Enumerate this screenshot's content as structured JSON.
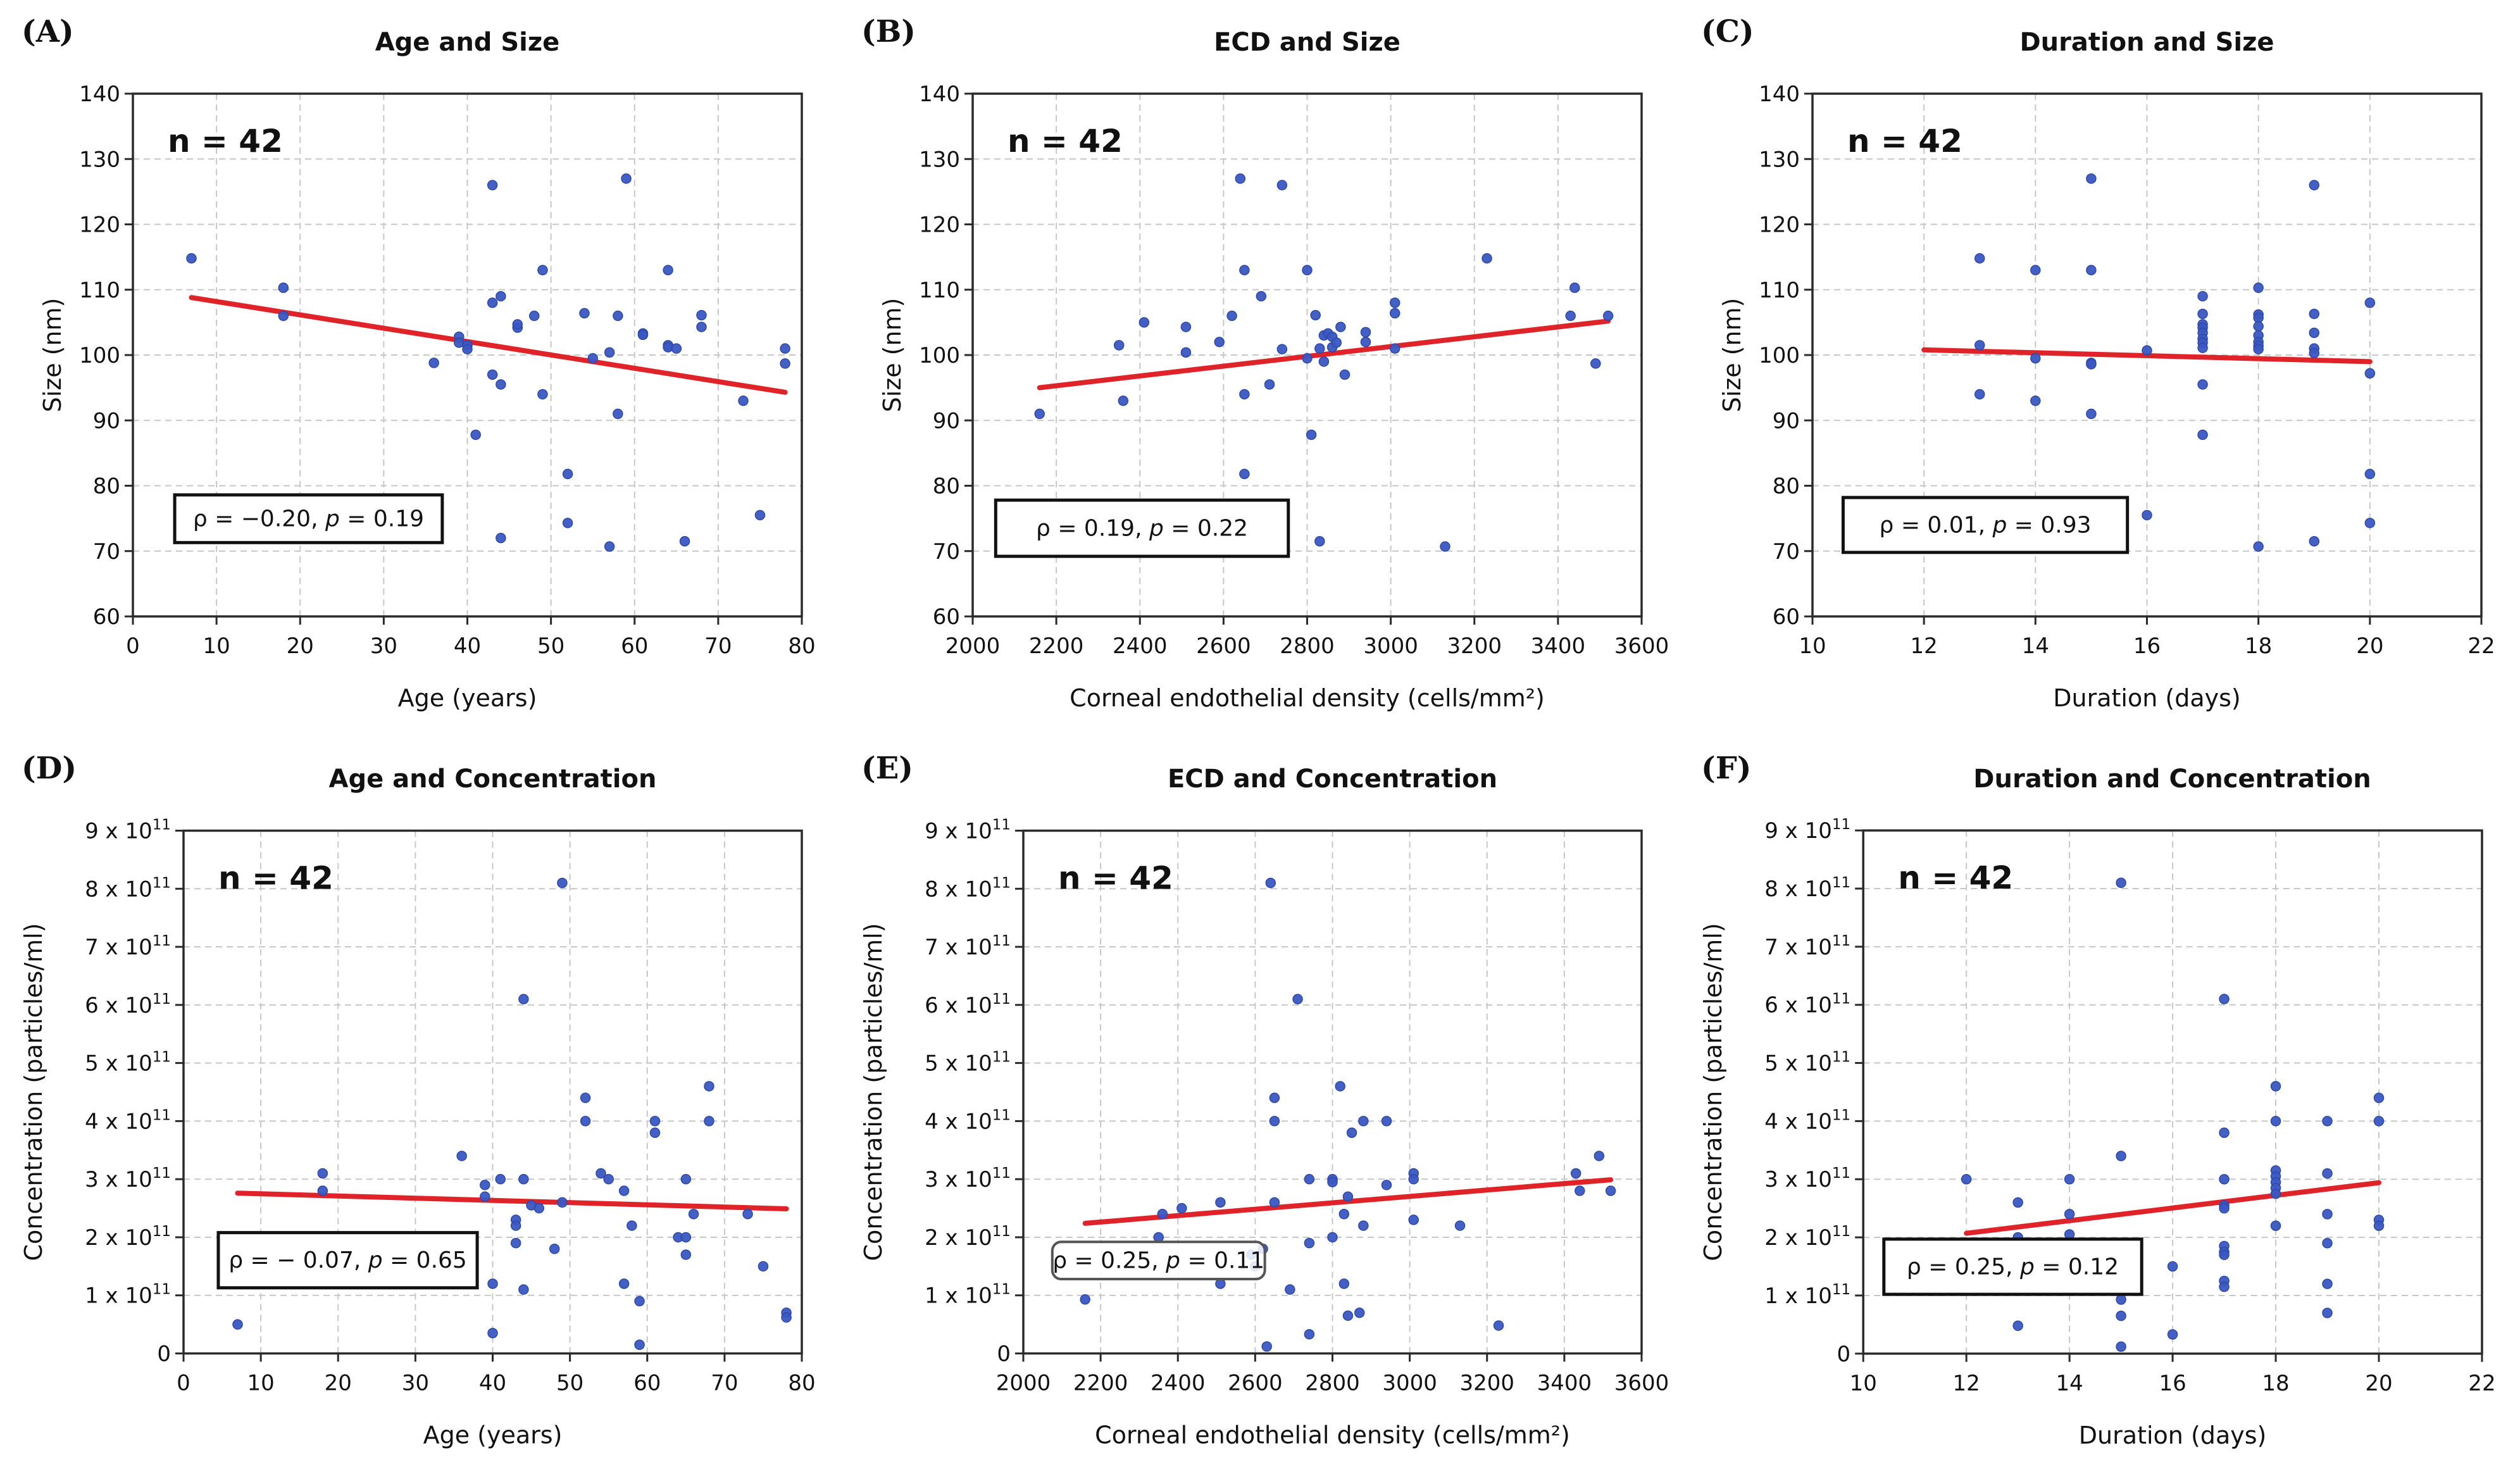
{
  "figure_title": "Correlation scatter plots",
  "colors": {
    "point_blue": "#3b57c2",
    "point_edge": "#2d49a8",
    "trend_red": "#e02328",
    "spine": "#2a2a2a",
    "grid": "#c7c7c7",
    "text": "#111111",
    "stats_border_square": "#111111",
    "stats_border_rounded": "#555555",
    "background": "#ffffff"
  },
  "chart_data": [
    {
      "type": "scatter",
      "letter": "(A)",
      "title": "Age and Size",
      "n_label": "n = 42",
      "xlabel": "Age (years)",
      "ylabel": "Size (nm)",
      "xlim": [
        0,
        80
      ],
      "xticks": [
        0,
        10,
        20,
        30,
        40,
        50,
        60,
        70,
        80
      ],
      "ylim": [
        60,
        140
      ],
      "yticks": [
        60,
        70,
        80,
        90,
        100,
        110,
        120,
        130,
        140
      ],
      "ytick_format": "plain",
      "grid": true,
      "points": [
        [
          7,
          114.8
        ],
        [
          18,
          110.3
        ],
        [
          18,
          106
        ],
        [
          36,
          98.8
        ],
        [
          39,
          102.8
        ],
        [
          39,
          101.9
        ],
        [
          40,
          101.5
        ],
        [
          40,
          100.9
        ],
        [
          41,
          87.8
        ],
        [
          43,
          126
        ],
        [
          43,
          108
        ],
        [
          44,
          109
        ],
        [
          43,
          97
        ],
        [
          44,
          95.5
        ],
        [
          44,
          72
        ],
        [
          46,
          104.2
        ],
        [
          46,
          104.7
        ],
        [
          48,
          106
        ],
        [
          49,
          113
        ],
        [
          49,
          94
        ],
        [
          52,
          81.8
        ],
        [
          52,
          74.3
        ],
        [
          54,
          106.4
        ],
        [
          55,
          99.5
        ],
        [
          57,
          100.4
        ],
        [
          57,
          70.7
        ],
        [
          58,
          106
        ],
        [
          59,
          127
        ],
        [
          58,
          91
        ],
        [
          61,
          103.3
        ],
        [
          61,
          103.1
        ],
        [
          64,
          113
        ],
        [
          64,
          101.5
        ],
        [
          64,
          101.2
        ],
        [
          65,
          101
        ],
        [
          66,
          71.5
        ],
        [
          68,
          106.1
        ],
        [
          68,
          104.3
        ],
        [
          73,
          93
        ],
        [
          75,
          75.5
        ],
        [
          78,
          101
        ],
        [
          78,
          98.7
        ]
      ],
      "trend": {
        "x1": 7,
        "y1": 108.8,
        "x2": 78,
        "y2": 94.3
      },
      "stats": {
        "prefix": "ρ = −0.20, ",
        "italic": "p",
        "suffix": " = 0.19"
      },
      "stats_box": {
        "x1": 5,
        "x2": 37,
        "y1": 71.3,
        "y2": 78.6,
        "rounded": false
      }
    },
    {
      "type": "scatter",
      "letter": "(B)",
      "title": "ECD and Size",
      "n_label": "n = 42",
      "xlabel": "Corneal endothelial density (cells/mm²)",
      "ylabel": "Size (nm)",
      "xlim": [
        2000,
        3600
      ],
      "xticks": [
        2000,
        2200,
        2400,
        2600,
        2800,
        3000,
        3200,
        3400,
        3600
      ],
      "ylim": [
        60,
        140
      ],
      "yticks": [
        60,
        70,
        80,
        90,
        100,
        110,
        120,
        130,
        140
      ],
      "ytick_format": "plain",
      "grid": true,
      "points": [
        [
          2160,
          91
        ],
        [
          2350,
          101.5
        ],
        [
          2360,
          93
        ],
        [
          2410,
          105
        ],
        [
          2510,
          104.3
        ],
        [
          2510,
          100.4
        ],
        [
          2590,
          102
        ],
        [
          2620,
          106
        ],
        [
          2640,
          127
        ],
        [
          2650,
          113
        ],
        [
          2650,
          94
        ],
        [
          2650,
          81.8
        ],
        [
          2690,
          109
        ],
        [
          2710,
          95.5
        ],
        [
          2740,
          126
        ],
        [
          2740,
          100.9
        ],
        [
          2740,
          72
        ],
        [
          2800,
          113
        ],
        [
          2800,
          99.5
        ],
        [
          2810,
          87.8
        ],
        [
          2820,
          106.1
        ],
        [
          2830,
          101
        ],
        [
          2830,
          71.5
        ],
        [
          2840,
          103
        ],
        [
          2850,
          103.3
        ],
        [
          2840,
          99
        ],
        [
          2860,
          101.2
        ],
        [
          2860,
          102.8
        ],
        [
          2870,
          101.9
        ],
        [
          2880,
          104.3
        ],
        [
          2890,
          97
        ],
        [
          2940,
          103.5
        ],
        [
          2940,
          102
        ],
        [
          3010,
          108
        ],
        [
          3010,
          106.4
        ],
        [
          3010,
          101
        ],
        [
          3130,
          70.7
        ],
        [
          3230,
          114.8
        ],
        [
          3430,
          106
        ],
        [
          3440,
          110.3
        ],
        [
          3490,
          98.7
        ],
        [
          3520,
          106
        ]
      ],
      "trend": {
        "x1": 2160,
        "y1": 95.0,
        "x2": 3520,
        "y2": 105.2
      },
      "stats": {
        "prefix": "ρ = 0.19, ",
        "italic": "p",
        "suffix": " = 0.22"
      },
      "stats_box": {
        "x1": 2055,
        "x2": 2755,
        "y1": 69.2,
        "y2": 77.8,
        "rounded": false
      }
    },
    {
      "type": "scatter",
      "letter": "(C)",
      "title": "Duration and Size",
      "n_label": "n = 42",
      "xlabel": "Duration (days)",
      "ylabel": "Size (nm)",
      "xlim": [
        10,
        22
      ],
      "xticks": [
        10,
        12,
        14,
        16,
        18,
        20,
        22
      ],
      "ylim": [
        60,
        140
      ],
      "yticks": [
        60,
        70,
        80,
        90,
        100,
        110,
        120,
        130,
        140
      ],
      "ytick_format": "plain",
      "grid": true,
      "points": [
        [
          13,
          114.8
        ],
        [
          13,
          101.5
        ],
        [
          13,
          94
        ],
        [
          14,
          113
        ],
        [
          14,
          99.5
        ],
        [
          14,
          93
        ],
        [
          15,
          127
        ],
        [
          15,
          113
        ],
        [
          15,
          98.8
        ],
        [
          15,
          98.6
        ],
        [
          15,
          91
        ],
        [
          16,
          100.7
        ],
        [
          16,
          75.5
        ],
        [
          17,
          109
        ],
        [
          17,
          106.3
        ],
        [
          17,
          104.7
        ],
        [
          17,
          104.2
        ],
        [
          17,
          103.4
        ],
        [
          17,
          102.5
        ],
        [
          17,
          101.9
        ],
        [
          17,
          101.1
        ],
        [
          17,
          95.5
        ],
        [
          17,
          87.8
        ],
        [
          18,
          110.3
        ],
        [
          18,
          106.2
        ],
        [
          18,
          105.7
        ],
        [
          18,
          104.4
        ],
        [
          18,
          103
        ],
        [
          18,
          102
        ],
        [
          18,
          101.4
        ],
        [
          18,
          100.9
        ],
        [
          18,
          70.7
        ],
        [
          19,
          126
        ],
        [
          19,
          106.3
        ],
        [
          19,
          103.4
        ],
        [
          19,
          101
        ],
        [
          19,
          100.3
        ],
        [
          19,
          71.5
        ],
        [
          20,
          108
        ],
        [
          20,
          97.2
        ],
        [
          20,
          81.8
        ],
        [
          20,
          74.3
        ]
      ],
      "trend": {
        "x1": 12,
        "y1": 100.8,
        "x2": 20,
        "y2": 99.0
      },
      "stats": {
        "prefix": "ρ = 0.01, ",
        "italic": "p",
        "suffix": " = 0.93"
      },
      "stats_box": {
        "x1": 10.55,
        "x2": 15.65,
        "y1": 69.8,
        "y2": 78.2,
        "rounded": false
      }
    },
    {
      "type": "scatter",
      "letter": "(D)",
      "title": "Age and Concentration",
      "n_label": "n = 42",
      "xlabel": "Age (years)",
      "ylabel": "Concentration (particles/ml)",
      "xlim": [
        0,
        80
      ],
      "xticks": [
        0,
        10,
        20,
        30,
        40,
        50,
        60,
        70,
        80
      ],
      "ylim": [
        0,
        9
      ],
      "yticks": [
        0,
        1,
        2,
        3,
        4,
        5,
        6,
        7,
        8,
        9
      ],
      "ytick_format": "sci11",
      "y_unit": "x 10^11 particles/ml",
      "grid": true,
      "points": [
        [
          7,
          0.5
        ],
        [
          18,
          3.1
        ],
        [
          18,
          2.8
        ],
        [
          36,
          3.4
        ],
        [
          39,
          2.9
        ],
        [
          39,
          2.7
        ],
        [
          40,
          1.2
        ],
        [
          40,
          0.35
        ],
        [
          41,
          3.0
        ],
        [
          43,
          2.3
        ],
        [
          43,
          2.2
        ],
        [
          43,
          1.9
        ],
        [
          44,
          6.1
        ],
        [
          44,
          3.0
        ],
        [
          44,
          1.1
        ],
        [
          45,
          2.55
        ],
        [
          46,
          2.5
        ],
        [
          48,
          1.8
        ],
        [
          49,
          8.1
        ],
        [
          49,
          2.6
        ],
        [
          52,
          4.4
        ],
        [
          52,
          4.0
        ],
        [
          54,
          3.1
        ],
        [
          55,
          3.0
        ],
        [
          57,
          2.8
        ],
        [
          57,
          1.2
        ],
        [
          58,
          2.2
        ],
        [
          59,
          0.9
        ],
        [
          59,
          0.15
        ],
        [
          61,
          4.0
        ],
        [
          61,
          3.8
        ],
        [
          64,
          2.0
        ],
        [
          65,
          3.0
        ],
        [
          65,
          2.0
        ],
        [
          65,
          1.7
        ],
        [
          66,
          2.4
        ],
        [
          68,
          4.6
        ],
        [
          68,
          4.0
        ],
        [
          73,
          2.4
        ],
        [
          75,
          1.5
        ],
        [
          78,
          0.7
        ],
        [
          78,
          0.62
        ]
      ],
      "trend": {
        "x1": 7,
        "y1": 2.76,
        "x2": 78,
        "y2": 2.49
      },
      "stats": {
        "prefix": "ρ = − 0.07, ",
        "italic": "p",
        "suffix": " = 0.65"
      },
      "stats_box": {
        "x1": 4.5,
        "x2": 38,
        "y1": 1.13,
        "y2": 2.08,
        "rounded": false
      }
    },
    {
      "type": "scatter",
      "letter": "(E)",
      "title": "ECD and Concentration",
      "n_label": "n = 42",
      "xlabel": "Corneal endothelial density (cells/mm²)",
      "ylabel": "Concentration (particles/ml)",
      "xlim": [
        2000,
        3600
      ],
      "xticks": [
        2000,
        2200,
        2400,
        2600,
        2800,
        3000,
        3200,
        3400,
        3600
      ],
      "ylim": [
        0,
        9
      ],
      "yticks": [
        0,
        1,
        2,
        3,
        4,
        5,
        6,
        7,
        8,
        9
      ],
      "ytick_format": "sci11",
      "y_unit": "x 10^11 particles/ml",
      "grid": true,
      "points": [
        [
          2160,
          0.93
        ],
        [
          2350,
          2.0
        ],
        [
          2360,
          2.4
        ],
        [
          2410,
          2.5
        ],
        [
          2510,
          2.6
        ],
        [
          2510,
          1.2
        ],
        [
          2590,
          1.7
        ],
        [
          2600,
          1.5
        ],
        [
          2620,
          1.8
        ],
        [
          2630,
          0.12
        ],
        [
          2640,
          8.1
        ],
        [
          2650,
          4.4
        ],
        [
          2650,
          4.0
        ],
        [
          2650,
          2.6
        ],
        [
          2690,
          1.1
        ],
        [
          2710,
          6.1
        ],
        [
          2740,
          3.0
        ],
        [
          2740,
          1.9
        ],
        [
          2740,
          0.33
        ],
        [
          2800,
          3.0
        ],
        [
          2800,
          2.95
        ],
        [
          2800,
          2.0
        ],
        [
          2820,
          4.6
        ],
        [
          2830,
          2.4
        ],
        [
          2830,
          1.2
        ],
        [
          2840,
          2.7
        ],
        [
          2840,
          0.65
        ],
        [
          2850,
          3.8
        ],
        [
          2870,
          0.7
        ],
        [
          2880,
          4.0
        ],
        [
          2880,
          2.2
        ],
        [
          2940,
          4.0
        ],
        [
          2940,
          2.9
        ],
        [
          3010,
          3.1
        ],
        [
          3010,
          3.0
        ],
        [
          3010,
          2.3
        ],
        [
          3130,
          2.2
        ],
        [
          3230,
          0.48
        ],
        [
          3430,
          3.1
        ],
        [
          3440,
          2.8
        ],
        [
          3490,
          3.4
        ],
        [
          3520,
          2.8
        ]
      ],
      "trend": {
        "x1": 2160,
        "y1": 2.24,
        "x2": 3520,
        "y2": 2.99
      },
      "stats": {
        "prefix": "ρ = 0.25, ",
        "italic": "p",
        "suffix": " = 0.11"
      },
      "stats_box": {
        "x1": 2075,
        "x2": 2625,
        "y1": 1.28,
        "y2": 1.92,
        "rounded": true
      }
    },
    {
      "type": "scatter",
      "letter": "(F)",
      "title": "Duration and Concentration",
      "n_label": "n = 42",
      "xlabel": "Duration (days)",
      "ylabel": "Concentration (particles/ml)",
      "xlim": [
        10,
        22
      ],
      "xticks": [
        10,
        12,
        14,
        16,
        18,
        20,
        22
      ],
      "ylim": [
        0,
        9
      ],
      "yticks": [
        0,
        1,
        2,
        3,
        4,
        5,
        6,
        7,
        8,
        9
      ],
      "ytick_format": "sci11",
      "y_unit": "x 10^11 particles/ml",
      "grid": true,
      "points": [
        [
          12,
          3.0
        ],
        [
          13,
          2.6
        ],
        [
          13,
          2.0
        ],
        [
          13,
          0.48
        ],
        [
          14,
          3.0
        ],
        [
          14,
          2.4
        ],
        [
          14,
          2.05
        ],
        [
          15,
          8.1
        ],
        [
          15,
          3.4
        ],
        [
          15,
          0.93
        ],
        [
          15,
          0.65
        ],
        [
          15,
          0.12
        ],
        [
          16,
          1.5
        ],
        [
          16,
          0.33
        ],
        [
          17,
          6.1
        ],
        [
          17,
          3.8
        ],
        [
          17,
          3.0
        ],
        [
          17,
          2.55
        ],
        [
          17,
          2.5
        ],
        [
          17,
          1.85
        ],
        [
          17,
          1.75
        ],
        [
          17,
          1.7
        ],
        [
          17,
          1.25
        ],
        [
          17,
          1.15
        ],
        [
          18,
          4.6
        ],
        [
          18,
          4.0
        ],
        [
          18,
          3.15
        ],
        [
          18,
          3.05
        ],
        [
          18,
          2.95
        ],
        [
          18,
          2.85
        ],
        [
          18,
          2.75
        ],
        [
          18,
          2.2
        ],
        [
          19,
          4.0
        ],
        [
          19,
          3.1
        ],
        [
          19,
          2.4
        ],
        [
          19,
          1.9
        ],
        [
          19,
          1.2
        ],
        [
          19,
          0.7
        ],
        [
          20,
          4.4
        ],
        [
          20,
          4.0
        ],
        [
          20,
          2.3
        ],
        [
          20,
          2.2
        ]
      ],
      "trend": {
        "x1": 12,
        "y1": 2.07,
        "x2": 20,
        "y2": 2.94
      },
      "stats": {
        "prefix": "ρ = 0.25, ",
        "italic": "p",
        "suffix": " = 0.12"
      },
      "stats_box": {
        "x1": 10.4,
        "x2": 15.4,
        "y1": 1.02,
        "y2": 1.97,
        "rounded": false
      }
    }
  ]
}
